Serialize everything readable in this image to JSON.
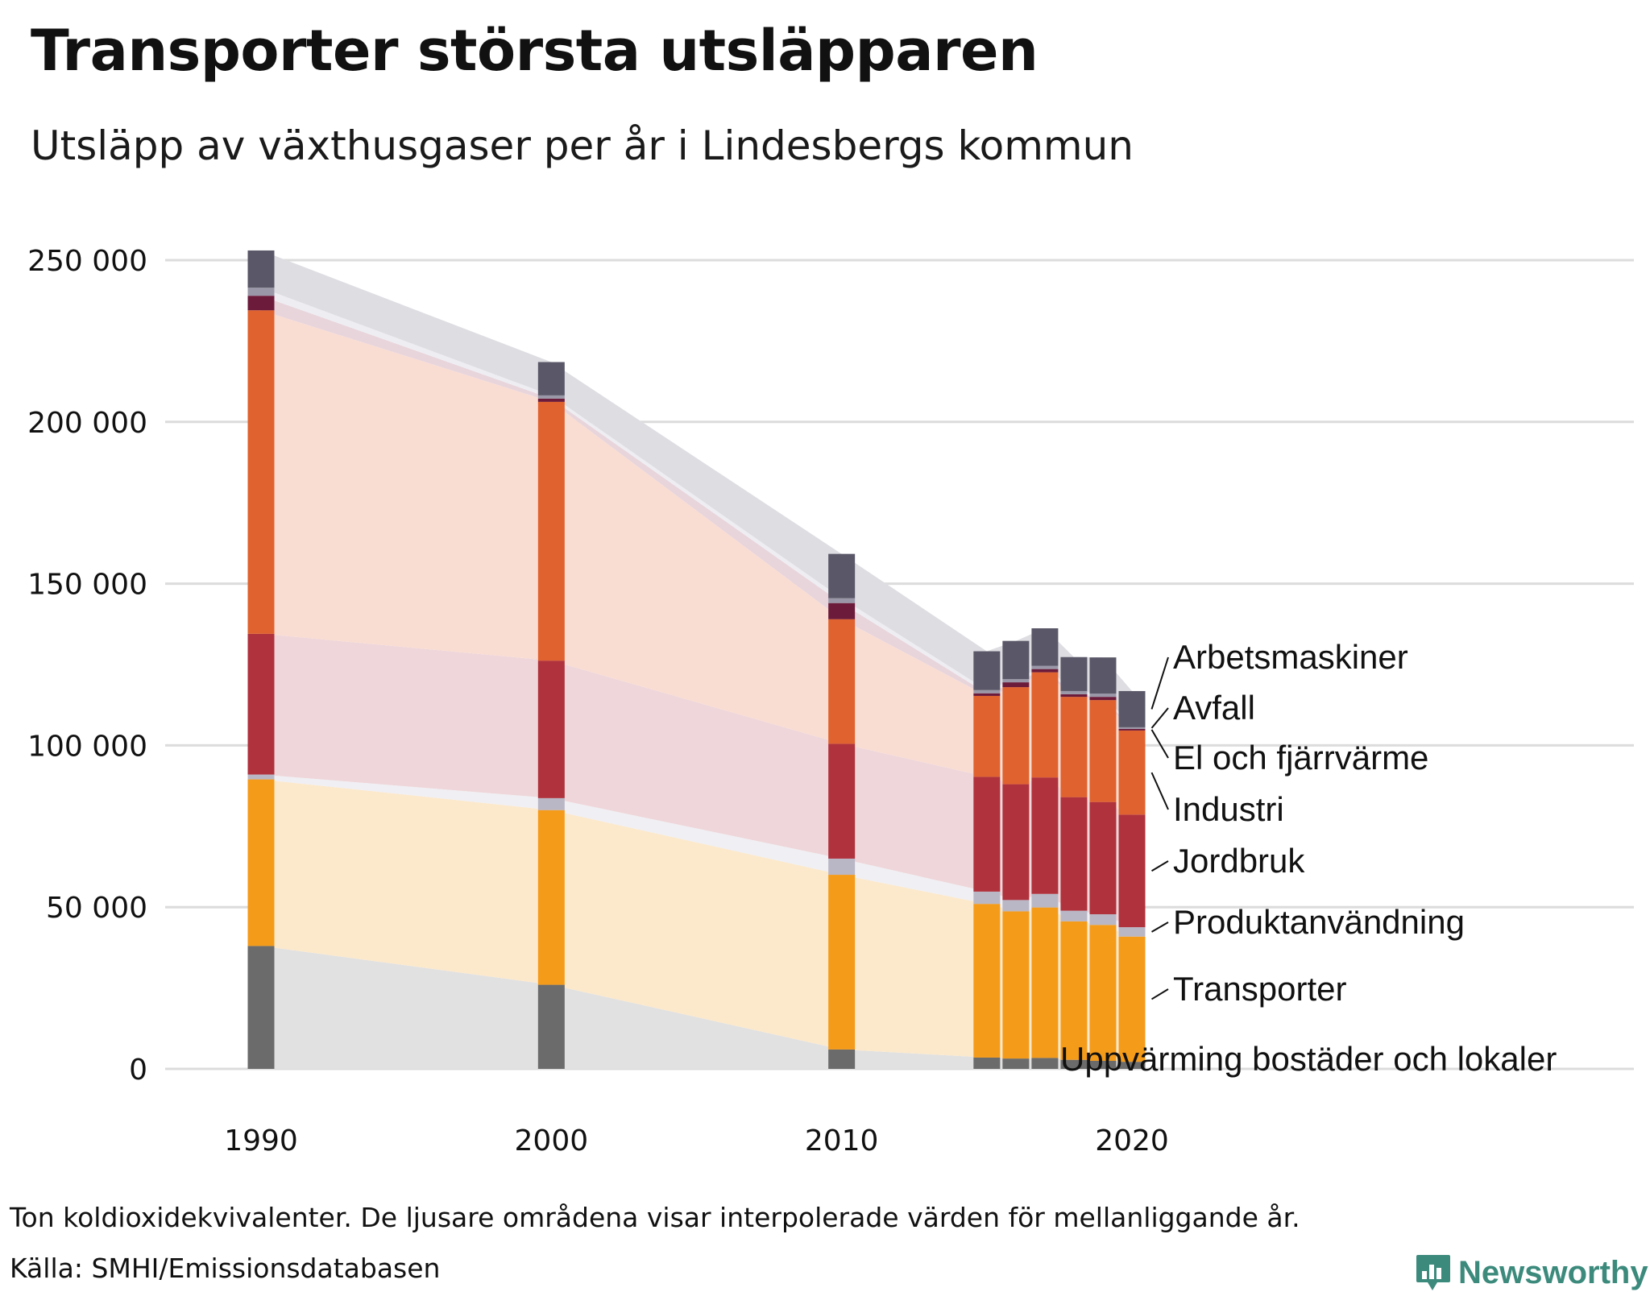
{
  "title": "Transporter största utsläpparen",
  "subtitle": "Utsläpp av växthusgaser per år i Lindesbergs kommun",
  "footer": {
    "note": "Ton koldioxidekvivalenter. De ljusare områdena visar interpolerade värden för mellanliggande år.",
    "source": "Källa: SMHI/Emissionsdatabasen",
    "brand": "Newsworthy",
    "brand_color": "#3c8a7c"
  },
  "chart_data": {
    "type": "bar",
    "stacked": true,
    "title": "Transporter största utsläpparen",
    "subtitle": "Utsläpp av växthusgaser per år i Lindesbergs kommun",
    "xlabel": "",
    "ylabel": "Ton koldioxidekvivalenter",
    "ylim": [
      0,
      250000
    ],
    "yticks": [
      0,
      50000,
      100000,
      150000,
      200000,
      250000
    ],
    "ytick_labels": [
      "0",
      "50 000",
      "100 000",
      "150 000",
      "200 000",
      "250 000"
    ],
    "xticks": [
      1990,
      2000,
      2010,
      2020
    ],
    "xtick_labels": [
      "1990",
      "2000",
      "2010",
      "2020"
    ],
    "gridlines": true,
    "legend_placement": "right",
    "interpolated_areas": true,
    "categories": [
      1990,
      2000,
      2010,
      2015,
      2016,
      2017,
      2018,
      2019,
      2020
    ],
    "series": [
      {
        "name": "Uppvärming bostäder och lokaler",
        "color": "#6b6b6b",
        "area_color": "#e1e1e1",
        "values": [
          38000,
          26000,
          6000,
          3500,
          3200,
          3400,
          2800,
          2500,
          2200
        ]
      },
      {
        "name": "Transporter",
        "color": "#f59b1a",
        "area_color": "#fce9cc",
        "values": [
          51500,
          54000,
          54000,
          47500,
          45500,
          46500,
          42800,
          42000,
          38700
        ]
      },
      {
        "name": "Produktanvändning",
        "color": "#b9b7c5",
        "area_color": "#f0eff3",
        "values": [
          1500,
          3700,
          5000,
          3800,
          3500,
          4200,
          3300,
          3300,
          2900
        ]
      },
      {
        "name": "Jordbruk",
        "color": "#b0323c",
        "area_color": "#eed6da",
        "values": [
          43500,
          42500,
          35500,
          35500,
          35800,
          36000,
          35100,
          34700,
          34800
        ]
      },
      {
        "name": "Industri",
        "color": "#e0622e",
        "area_color": "#f9ddd3",
        "values": [
          100000,
          80000,
          38500,
          25000,
          30000,
          32500,
          31000,
          31500,
          26000
        ]
      },
      {
        "name": "El och fjärrvärme",
        "color": "#6d1b3a",
        "area_color": "#e8d5dc",
        "values": [
          4500,
          1000,
          5000,
          800,
          1500,
          1000,
          800,
          1000,
          500
        ]
      },
      {
        "name": "Avfall",
        "color": "#9a98a8",
        "area_color": "#eeeef2",
        "values": [
          2500,
          1000,
          1500,
          1000,
          1000,
          1000,
          1000,
          1000,
          500
        ]
      },
      {
        "name": "Arbetsmaskiner",
        "color": "#5a5868",
        "area_color": "#dedde2",
        "values": [
          11500,
          10300,
          13700,
          12000,
          11800,
          11600,
          10500,
          11200,
          11200
        ]
      }
    ]
  }
}
